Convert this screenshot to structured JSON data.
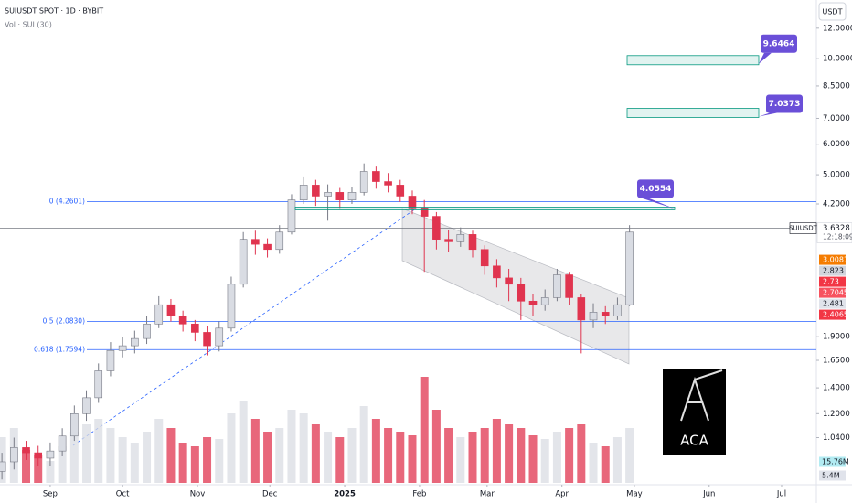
{
  "chart_data": {
    "type": "candlestick",
    "title": "SUIUSDT SPOT · 1D · BYBIT",
    "subtitle": "Vol · SUI (30)",
    "currency": "USDT",
    "symbol": "SUIUSDT",
    "x": [
      -20,
      -15,
      -10,
      -5,
      0,
      5,
      10,
      15,
      20,
      25,
      30,
      35,
      40,
      45,
      50,
      55,
      60,
      65,
      70,
      75,
      80,
      85,
      90,
      95,
      100,
      105,
      110,
      115,
      120,
      125,
      130,
      135,
      140,
      145,
      150,
      155,
      160,
      165,
      170,
      175,
      180,
      185,
      190,
      195,
      200,
      205,
      210,
      215,
      220,
      225,
      230,
      235,
      240
    ],
    "open": [
      0.85,
      0.9,
      0.98,
      0.95,
      0.92,
      0.96,
      1.05,
      1.2,
      1.32,
      1.55,
      1.75,
      1.8,
      1.88,
      2.05,
      2.3,
      2.15,
      2.05,
      1.95,
      1.8,
      2.0,
      2.6,
      3.4,
      3.3,
      3.2,
      3.55,
      4.3,
      4.7,
      4.4,
      4.5,
      4.3,
      4.5,
      5.1,
      4.8,
      4.7,
      4.4,
      4.1,
      3.9,
      3.4,
      3.35,
      3.5,
      3.2,
      2.9,
      2.7,
      2.6,
      2.35,
      2.3,
      2.4,
      2.75,
      2.4,
      2.1,
      2.2,
      2.15,
      2.3
    ],
    "high": [
      0.95,
      1.04,
      1.02,
      0.99,
      1.01,
      1.1,
      1.26,
      1.38,
      1.62,
      1.84,
      1.9,
      1.97,
      2.15,
      2.42,
      2.38,
      2.22,
      2.1,
      2.02,
      2.08,
      2.72,
      3.55,
      3.58,
      3.42,
      3.7,
      4.45,
      4.95,
      4.85,
      4.72,
      4.62,
      4.65,
      5.35,
      5.25,
      5.05,
      4.85,
      4.55,
      4.3,
      4.0,
      3.6,
      3.65,
      3.58,
      3.28,
      3.02,
      2.85,
      2.7,
      2.45,
      2.52,
      2.85,
      2.8,
      2.45,
      2.32,
      2.28,
      2.4,
      3.7
    ],
    "low": [
      0.81,
      0.86,
      0.91,
      0.88,
      0.88,
      0.93,
      1.02,
      1.15,
      1.28,
      1.5,
      1.68,
      1.72,
      1.82,
      2.0,
      2.08,
      1.96,
      1.85,
      1.7,
      1.74,
      1.96,
      2.55,
      3.1,
      3.05,
      3.12,
      3.5,
      4.2,
      4.15,
      3.8,
      4.1,
      4.2,
      4.42,
      4.6,
      4.5,
      4.25,
      3.95,
      2.8,
      3.2,
      3.15,
      3.25,
      3.05,
      2.75,
      2.55,
      2.35,
      2.1,
      2.15,
      2.22,
      2.35,
      2.3,
      1.72,
      2.0,
      2.05,
      2.1,
      2.28
    ],
    "close": [
      0.9,
      0.98,
      0.95,
      0.92,
      0.96,
      1.05,
      1.2,
      1.32,
      1.55,
      1.75,
      1.8,
      1.88,
      2.05,
      2.3,
      2.15,
      2.05,
      1.95,
      1.8,
      2.0,
      2.6,
      3.4,
      3.3,
      3.2,
      3.55,
      4.3,
      4.7,
      4.4,
      4.5,
      4.3,
      4.5,
      5.1,
      4.8,
      4.7,
      4.4,
      4.1,
      3.9,
      3.4,
      3.35,
      3.5,
      3.2,
      2.9,
      2.7,
      2.6,
      2.35,
      2.3,
      2.4,
      2.75,
      2.4,
      2.1,
      2.2,
      2.15,
      2.3,
      3.55
    ],
    "volume": [
      25,
      30,
      18,
      15,
      12,
      20,
      28,
      32,
      35,
      30,
      25,
      22,
      28,
      35,
      30,
      22,
      20,
      25,
      24,
      38,
      45,
      35,
      28,
      30,
      40,
      38,
      32,
      28,
      25,
      30,
      42,
      35,
      30,
      28,
      26,
      58,
      40,
      30,
      25,
      28,
      30,
      35,
      32,
      30,
      26,
      24,
      28,
      30,
      32,
      22,
      20,
      25,
      30
    ],
    "up_color": "#d9dce3",
    "down_color": "#e0344f",
    "log_scale": true,
    "xlim": [
      -20.8,
      317.4
    ],
    "xticks": [
      {
        "value": 0,
        "label": "Sep"
      },
      {
        "value": 30,
        "label": "Oct"
      },
      {
        "value": 61,
        "label": "Nov"
      },
      {
        "value": 91,
        "label": "Dec"
      },
      {
        "value": 122,
        "label": "2025"
      },
      {
        "value": 153,
        "label": "Feb"
      },
      {
        "value": 181,
        "label": "Mar"
      },
      {
        "value": 212,
        "label": "Apr"
      },
      {
        "value": 242,
        "label": "May"
      },
      {
        "value": 273,
        "label": "Jun"
      },
      {
        "value": 303,
        "label": "Jul"
      }
    ],
    "ylim": [
      0.785,
      14.2
    ],
    "yticks": [
      {
        "value": 12,
        "label": "12.0000"
      },
      {
        "value": 10,
        "label": "10.0000"
      },
      {
        "value": 8.5,
        "label": "8.5000"
      },
      {
        "value": 7,
        "label": "7.0000"
      },
      {
        "value": 6,
        "label": "6.0000"
      },
      {
        "value": 5,
        "label": "5.0000"
      },
      {
        "value": 4.2,
        "label": "4.2000"
      },
      {
        "value": 1.9,
        "label": "1.9000"
      },
      {
        "value": 1.65,
        "label": "1.6500"
      },
      {
        "value": 1.4,
        "label": "1.4000"
      },
      {
        "value": 1.2,
        "label": "1.2000"
      },
      {
        "value": 1.04,
        "label": "1.0400"
      }
    ],
    "vlim": [
      0,
      70
    ],
    "fib_levels": [
      {
        "value": 4.2601,
        "label": "0 (4.2601)"
      },
      {
        "value": 2.083,
        "label": "0.5 (2.0830)"
      },
      {
        "value": 1.7594,
        "label": "0.618 (1.7594)"
      }
    ],
    "targets": [
      9.6464,
      7.0373,
      4.0554
    ],
    "target_color": "#6a4fd8",
    "last_price": 3.6328,
    "countdown": "12:18:09",
    "price_tags": [
      {
        "value": 3.0081,
        "color": "#f57c00"
      },
      {
        "value": 2.823,
        "color": "#d1d4dc"
      },
      {
        "value": 2.73,
        "color": "#f23645"
      },
      {
        "value": 2.7045,
        "color": "#f7525f"
      },
      {
        "value": 2.481,
        "color": "#e0e3eb"
      },
      {
        "value": 2.4065,
        "color": "#f23645"
      }
    ],
    "volume_tags": [
      {
        "value": 15.76,
        "label": "15.76M",
        "color": "#b2ebf2"
      },
      {
        "value": 5.4,
        "label": "5.4M",
        "color": "#e0e3eb"
      }
    ],
    "logo": "ACA"
  }
}
